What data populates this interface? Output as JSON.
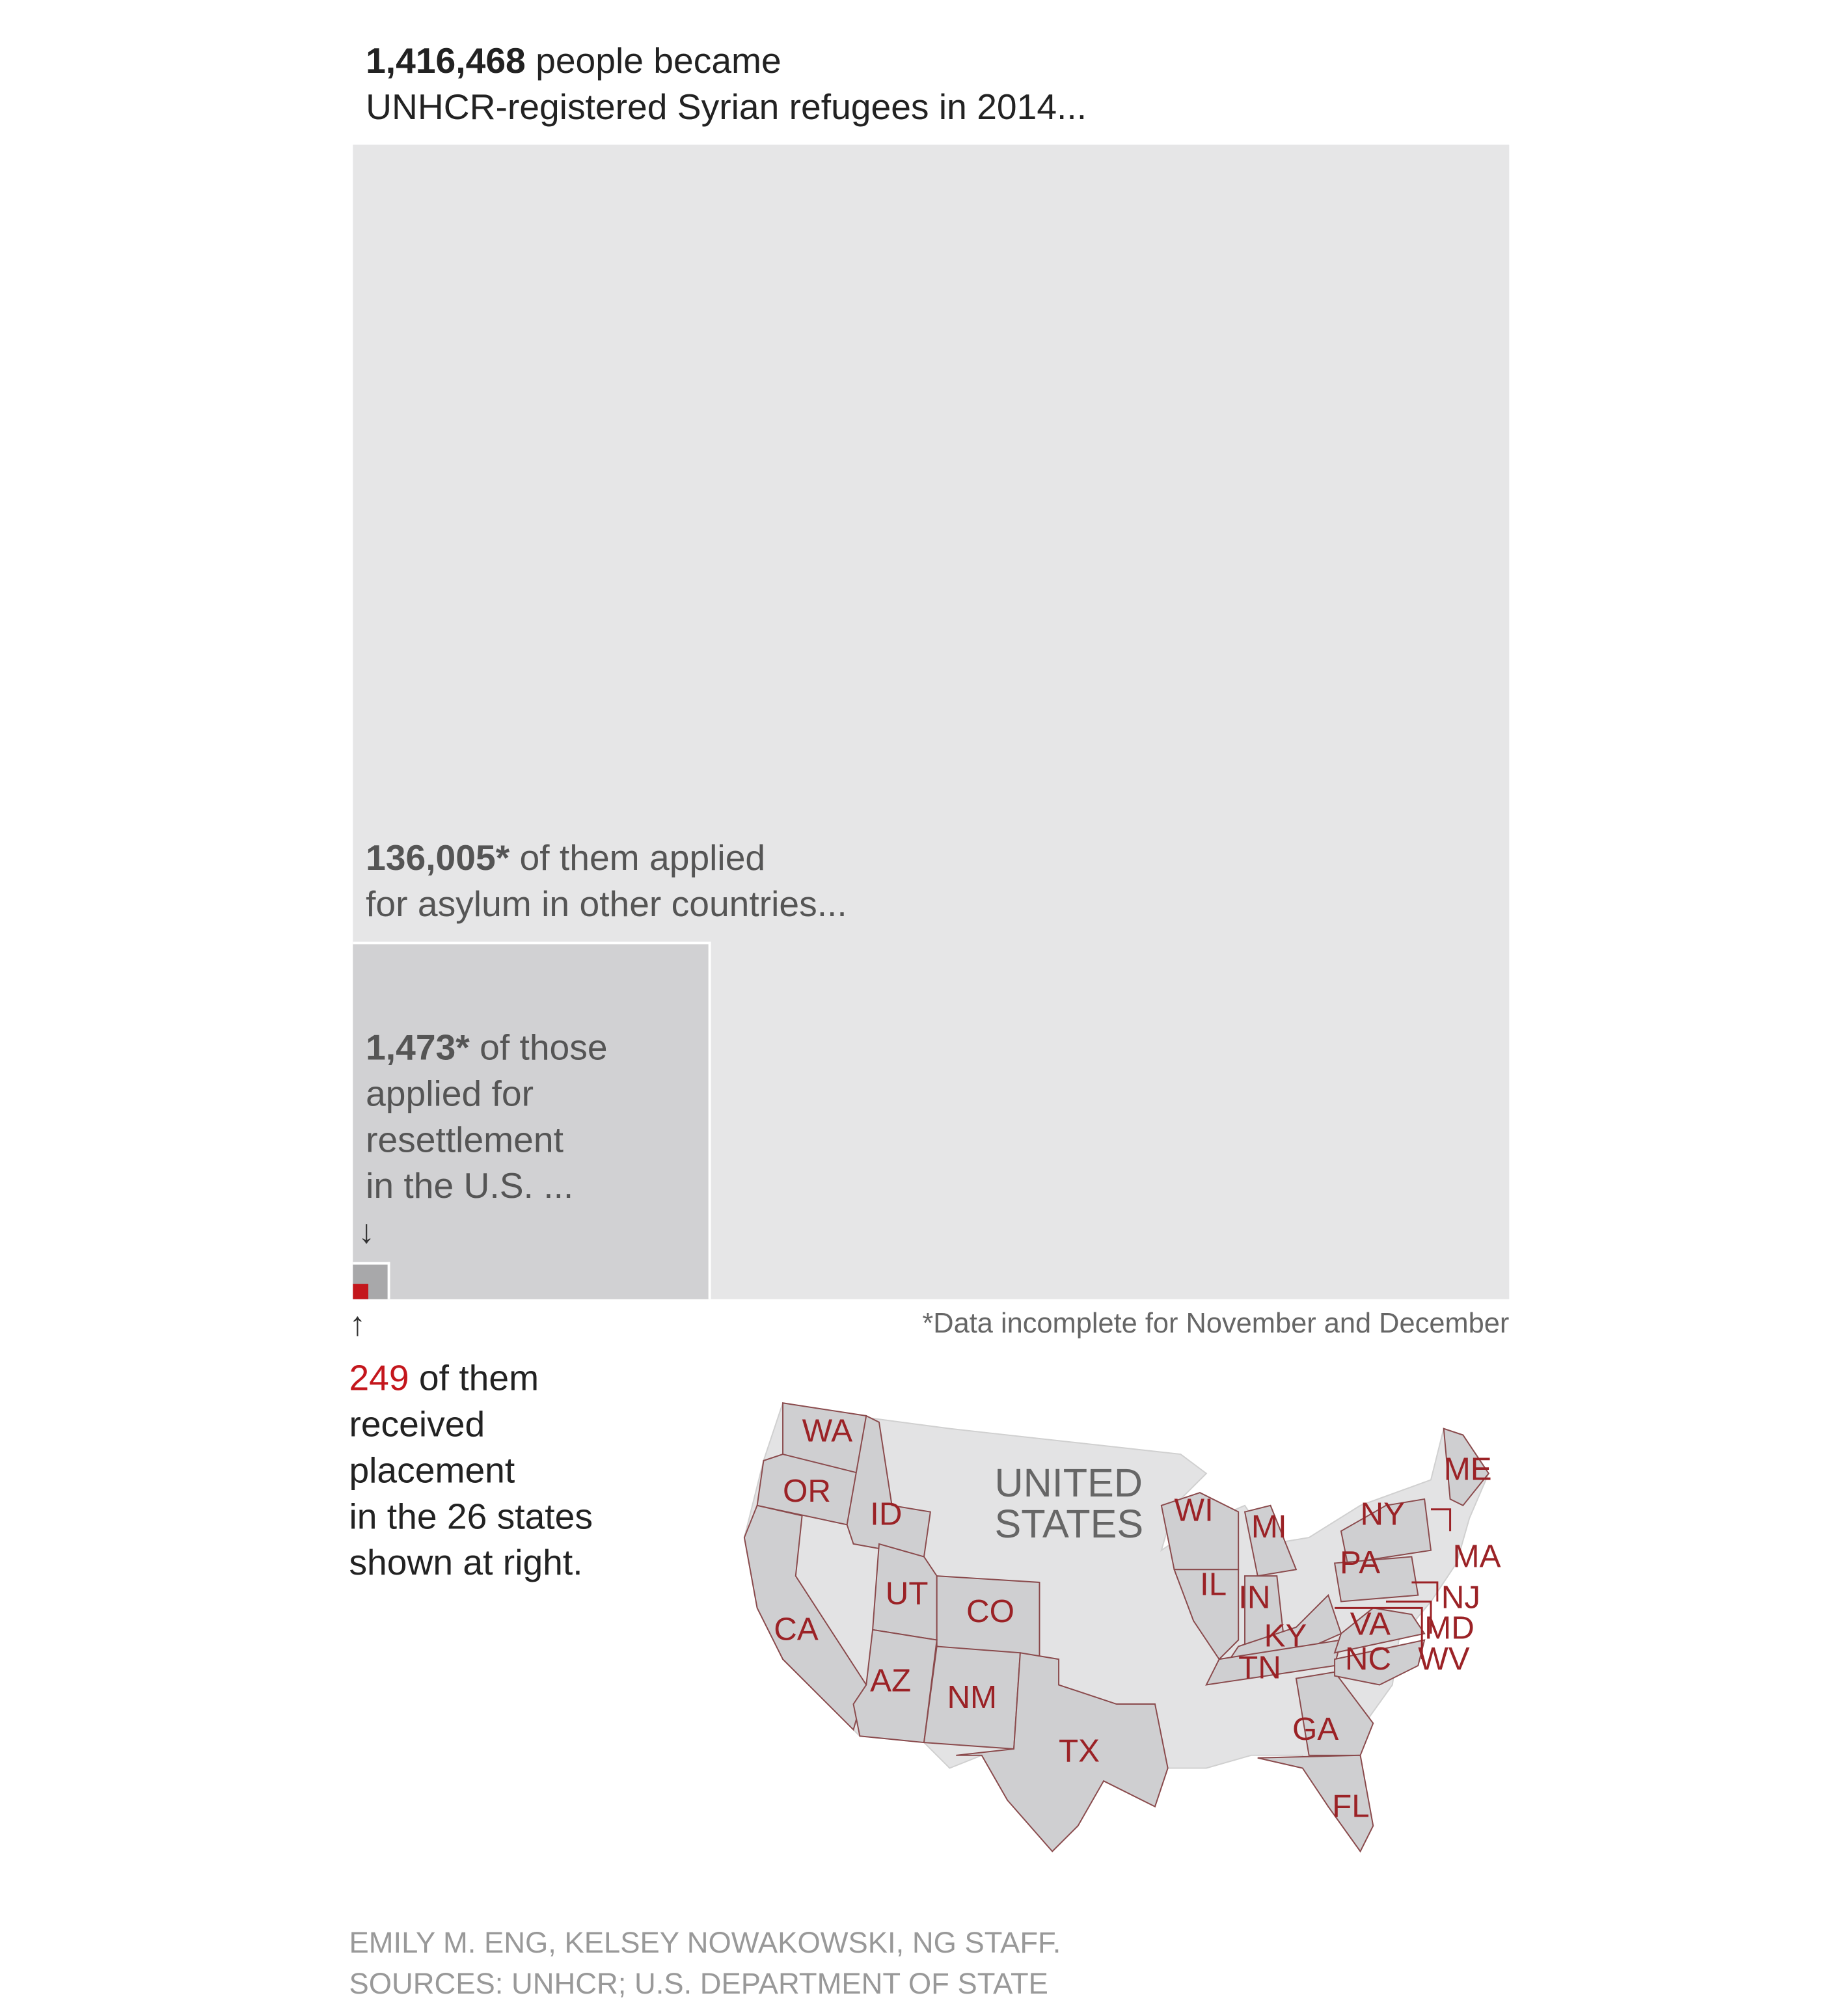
{
  "headline": {
    "number": "1,416,468",
    "text": " people became",
    "line2": "UNHCR-registered Syrian refugees in 2014..."
  },
  "asylum": {
    "number": "136,005*",
    "text": " of them applied",
    "line2": "for asylum in other countries..."
  },
  "resettlement": {
    "number": "1,473*",
    "text": " of those",
    "line2": "applied for",
    "line3": "resettlement",
    "line4": "in the U.S. ..."
  },
  "placement": {
    "number": "249",
    "text": " of them",
    "line2": "received",
    "line3": "placement",
    "line4": "in the 26 states",
    "line5": "shown at right."
  },
  "arrows": {
    "down": "↓",
    "up": "↑"
  },
  "footnote": "*Data incomplete for November and December",
  "map": {
    "country_line1": "UNITED",
    "country_line2": "STATES",
    "states": [
      "WA",
      "OR",
      "ID",
      "CA",
      "UT",
      "CO",
      "AZ",
      "NM",
      "TX",
      "WI",
      "IL",
      "MI",
      "IN",
      "KY",
      "TN",
      "GA",
      "FL",
      "NY",
      "PA",
      "VA",
      "NC",
      "ME",
      "MA",
      "NJ",
      "MD",
      "WV"
    ]
  },
  "credit": {
    "line1": "EMILY M. ENG, KELSEY NOWAKOWSKI, NG STAFF.",
    "line2": "SOURCES: UNHCR; U.S. DEPARTMENT OF STATE"
  },
  "colors": {
    "total": "#e6e6e7",
    "asylum": "#d1d1d3",
    "resettlement": "#a8a8aa",
    "placement": "#c4161c"
  },
  "chart_data": {
    "type": "area",
    "title": "Syrian refugees in 2014",
    "categories": [
      "UNHCR-registered Syrian refugees",
      "Applied for asylum in other countries",
      "Applied for resettlement in the U.S.",
      "Received placement in the U.S."
    ],
    "values": [
      1416468,
      136005,
      1473,
      249
    ],
    "encoding": "nested squares, area proportional to value"
  }
}
